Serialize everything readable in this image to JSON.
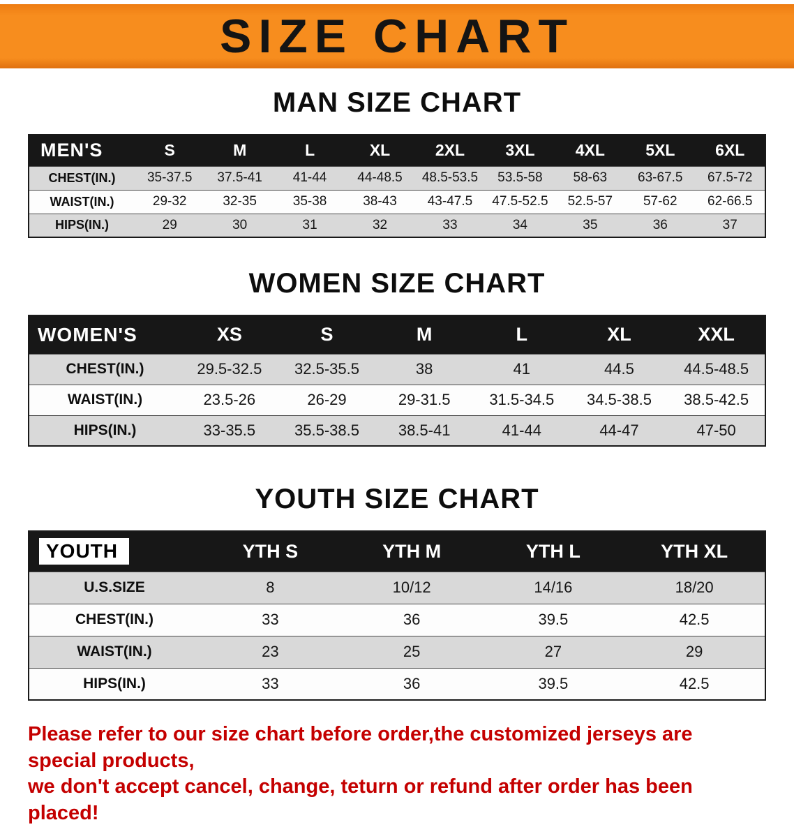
{
  "banner": {
    "title": "SIZE CHART",
    "bg_color": "#f78d1e",
    "text_color": "#141414"
  },
  "sections": [
    {
      "heading": "MAN SIZE CHART",
      "table": {
        "corner": "MEN'S",
        "columns": [
          "S",
          "M",
          "L",
          "XL",
          "2XL",
          "3XL",
          "4XL",
          "5XL",
          "6XL"
        ],
        "rows": [
          {
            "label": "CHEST(IN.)",
            "values": [
              "35-37.5",
              "37.5-41",
              "41-44",
              "44-48.5",
              "48.5-53.5",
              "53.5-58",
              "58-63",
              "63-67.5",
              "67.5-72"
            ]
          },
          {
            "label": "WAIST(IN.)",
            "values": [
              "29-32",
              "32-35",
              "35-38",
              "38-43",
              "43-47.5",
              "47.5-52.5",
              "52.5-57",
              "57-62",
              "62-66.5"
            ]
          },
          {
            "label": "HIPS(IN.)",
            "values": [
              "29",
              "30",
              "31",
              "32",
              "33",
              "34",
              "35",
              "36",
              "37"
            ]
          }
        ]
      }
    },
    {
      "heading": "WOMEN SIZE CHART",
      "table": {
        "corner": "WOMEN'S",
        "columns": [
          "XS",
          "S",
          "M",
          "L",
          "XL",
          "XXL"
        ],
        "rows": [
          {
            "label": "CHEST(IN.)",
            "values": [
              "29.5-32.5",
              "32.5-35.5",
              "38",
              "41",
              "44.5",
              "44.5-48.5"
            ]
          },
          {
            "label": "WAIST(IN.)",
            "values": [
              "23.5-26",
              "26-29",
              "29-31.5",
              "31.5-34.5",
              "34.5-38.5",
              "38.5-42.5"
            ]
          },
          {
            "label": "HIPS(IN.)",
            "values": [
              "33-35.5",
              "35.5-38.5",
              "38.5-41",
              "41-44",
              "44-47",
              "47-50"
            ]
          }
        ]
      }
    },
    {
      "heading": "YOUTH SIZE CHART",
      "table": {
        "corner": "YOUTH",
        "columns": [
          "YTH S",
          "YTH M",
          "YTH L",
          "YTH XL"
        ],
        "rows": [
          {
            "label": "U.S.SIZE",
            "values": [
              "8",
              "10/12",
              "14/16",
              "18/20"
            ]
          },
          {
            "label": "CHEST(IN.)",
            "values": [
              "33",
              "36",
              "39.5",
              "42.5"
            ]
          },
          {
            "label": "WAIST(IN.)",
            "values": [
              "23",
              "25",
              "27",
              "29"
            ]
          },
          {
            "label": "HIPS(IN.)",
            "values": [
              "33",
              "36",
              "39.5",
              "42.5"
            ]
          }
        ]
      }
    }
  ],
  "footer": {
    "line1": "Please refer to our size chart before order,the customized jerseys are special products,",
    "line2": "we don't accept cancel, change, teturn or refund after order has been placed!",
    "text_color": "#c40000"
  }
}
